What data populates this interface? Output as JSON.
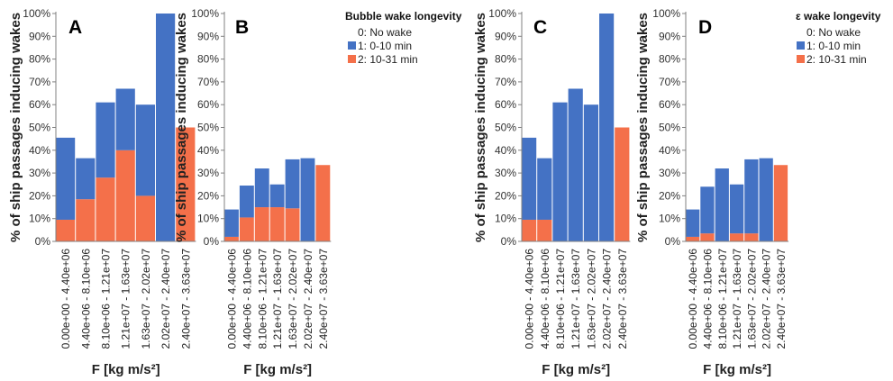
{
  "colors": {
    "blue": "#4472c4",
    "orange": "#f4704a",
    "axis": "#808080"
  },
  "legends": {
    "B": {
      "title": "Bubble wake longevity",
      "items": [
        "0: No wake",
        "1: 0-10 min",
        "2: 10-31 min"
      ]
    },
    "D": {
      "title": "ε wake longevity",
      "items": [
        "0: No wake",
        "1: 0-10 min",
        "2: 10-31 min"
      ]
    }
  },
  "chart_data": [
    {
      "panel": "A",
      "type": "bar",
      "stacked": true,
      "ylabel": "% of ship passages inducing wakes",
      "xlabel": "F [kg m/s²]",
      "ylim": [
        0,
        100
      ],
      "yticks": [
        "0%",
        "10%",
        "20%",
        "30%",
        "40%",
        "50%",
        "60%",
        "70%",
        "80%",
        "90%",
        "100%"
      ],
      "categories": [
        "0.00e+00 - 4.40e+06",
        "4.40e+06 - 8.10e+06",
        "8.10e+06 - 1.21e+07",
        "1.21e+07 - 1.63e+07",
        "1.63e+07 - 2.02e+07",
        "2.02e+07 - 2.40e+07",
        "2.40e+07 - 3.63e+07"
      ],
      "series": [
        {
          "name": "2: 10-31 min",
          "values": [
            9.5,
            18.5,
            28,
            40,
            20,
            0,
            50
          ]
        },
        {
          "name": "1: 0-10 min",
          "values": [
            36,
            18,
            33,
            27,
            40,
            100,
            0
          ]
        }
      ]
    },
    {
      "panel": "B",
      "type": "bar",
      "stacked": true,
      "ylabel": "% of ship passages inducing wakes",
      "xlabel": "F [kg m/s²]",
      "ylim": [
        0,
        100
      ],
      "yticks": [
        "0%",
        "10%",
        "20%",
        "30%",
        "40%",
        "50%",
        "60%",
        "70%",
        "80%",
        "90%",
        "100%"
      ],
      "categories": [
        "0.00e+00 - 4.40e+06",
        "4.40e+06 - 8.10e+06",
        "8.10e+06 - 1.21e+07",
        "1.21e+07 - 1.63e+07",
        "1.63e+07 - 2.02e+07",
        "2.02e+07 - 2.40e+07",
        "2.40e+07 - 3.63e+07"
      ],
      "series": [
        {
          "name": "2: 10-31 min",
          "values": [
            2,
            10.5,
            15,
            15,
            14.5,
            0,
            33.5
          ]
        },
        {
          "name": "1: 0-10 min",
          "values": [
            12,
            14,
            17,
            10,
            21.5,
            36.5,
            0
          ]
        }
      ]
    },
    {
      "panel": "C",
      "type": "bar",
      "stacked": true,
      "ylabel": "% of ship passages inducing wakes",
      "xlabel": "F [kg m/s²]",
      "ylim": [
        0,
        100
      ],
      "yticks": [
        "0%",
        "10%",
        "20%",
        "30%",
        "40%",
        "50%",
        "60%",
        "70%",
        "80%",
        "90%",
        "100%"
      ],
      "categories": [
        "0.00e+00 - 4.40e+06",
        "4.40e+06 - 8.10e+06",
        "8.10e+06 - 1.21e+07",
        "1.21e+07 - 1.63e+07",
        "1.63e+07 - 2.02e+07",
        "2.02e+07 - 2.40e+07",
        "2.40e+07 - 3.63e+07"
      ],
      "series": [
        {
          "name": "2: 10-31 min",
          "values": [
            9.5,
            9.5,
            0,
            0,
            0,
            0,
            50
          ]
        },
        {
          "name": "1: 0-10 min",
          "values": [
            36,
            27,
            61,
            67,
            60,
            100,
            0
          ]
        }
      ]
    },
    {
      "panel": "D",
      "type": "bar",
      "stacked": true,
      "ylabel": "% of ship passages inducing wakes",
      "xlabel": "F [kg m/s²]",
      "ylim": [
        0,
        100
      ],
      "yticks": [
        "0%",
        "10%",
        "20%",
        "30%",
        "40%",
        "50%",
        "60%",
        "70%",
        "80%",
        "90%",
        "100%"
      ],
      "categories": [
        "0.00e+00 - 4.40e+06",
        "4.40e+06 - 8.10e+06",
        "8.10e+06 - 1.21e+07",
        "1.21e+07 - 1.63e+07",
        "1.63e+07 - 2.02e+07",
        "2.02e+07 - 2.40e+07",
        "2.40e+07 - 3.63e+07"
      ],
      "series": [
        {
          "name": "2: 10-31 min",
          "values": [
            2,
            3.5,
            0,
            3.5,
            3.5,
            0,
            33.5
          ]
        },
        {
          "name": "1: 0-10 min",
          "values": [
            12,
            20.5,
            32,
            21.5,
            32.5,
            36.5,
            0
          ]
        }
      ]
    }
  ]
}
